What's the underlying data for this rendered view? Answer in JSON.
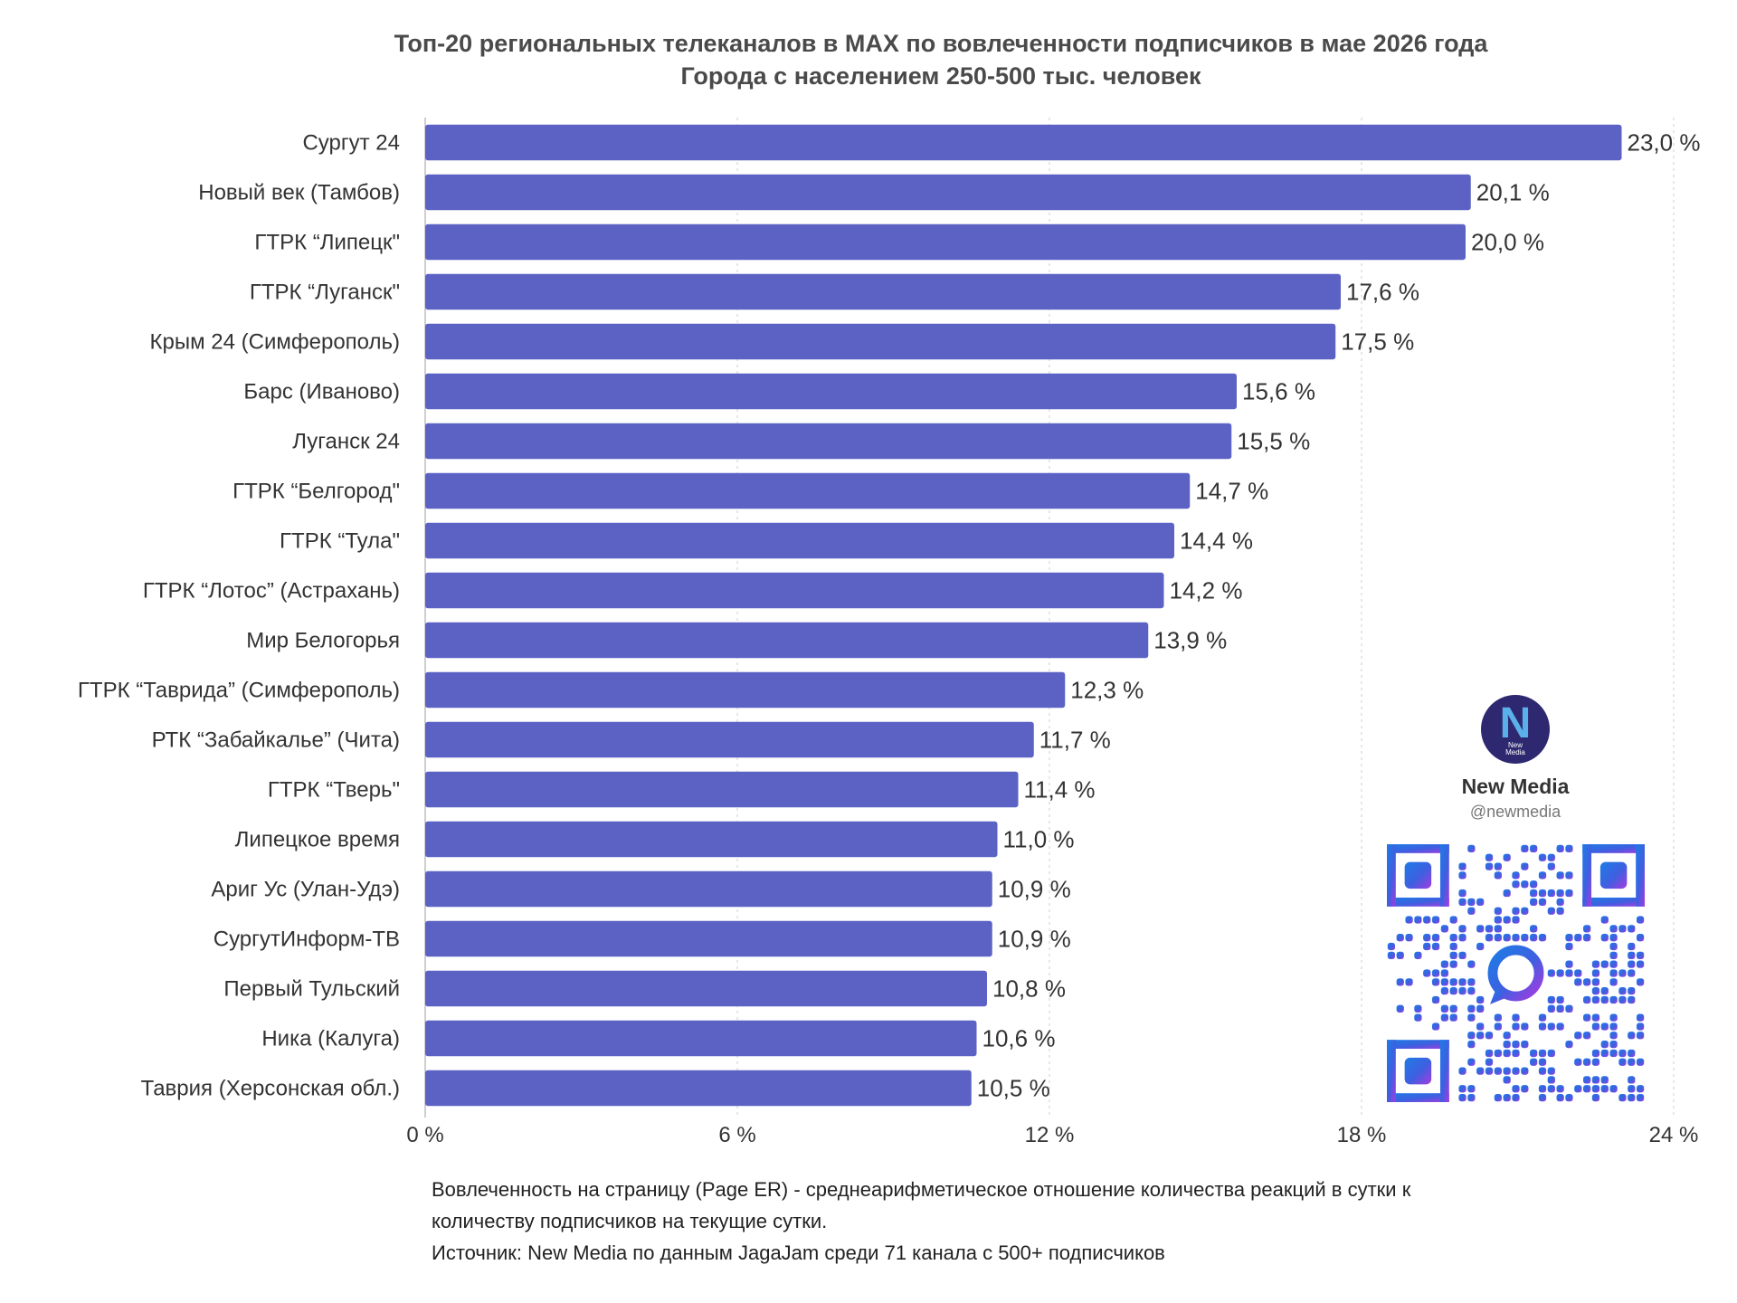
{
  "chart_data": {
    "type": "bar",
    "orientation": "horizontal",
    "title": "Топ-20 региональных телеканалов в MAX по вовлеченности подписчиков в мае 2026 года",
    "subtitle": "Города с населением 250-500 тыс. человек",
    "categories": [
      "Сургут 24",
      "Новый век (Тамбов)",
      "ГТРК “Липецк\"",
      "ГТРК “Луганск\"",
      "Крым 24 (Симферополь)",
      "Барс (Иваново)",
      "Луганск 24",
      "ГТРК “Белгород\"",
      "ГТРК “Тула\"",
      "ГТРК “Лотос” (Астрахань)",
      "Мир Белогорья",
      "ГТРК “Таврида” (Симферополь)",
      "РТК “Забайкалье” (Чита)",
      "ГТРК “Тверь\"",
      "Липецкое время",
      "Ариг Ус (Улан-Удэ)",
      "СургутИнформ-ТВ",
      "Первый Тульский",
      "Ника (Калуга)",
      "Таврия (Херсонская обл.)"
    ],
    "values": [
      23.0,
      20.1,
      20.0,
      17.6,
      17.5,
      15.6,
      15.5,
      14.7,
      14.4,
      14.2,
      13.9,
      12.3,
      11.7,
      11.4,
      11.0,
      10.9,
      10.9,
      10.8,
      10.6,
      10.5
    ],
    "value_labels": [
      "23,0 %",
      "20,1 %",
      "20,0 %",
      "17,6 %",
      "17,5 %",
      "15,6 %",
      "15,5 %",
      "14,7 %",
      "14,4 %",
      "14,2 %",
      "13,9 %",
      "12,3 %",
      "11,7 %",
      "11,4 %",
      "11,0 %",
      "10,9 %",
      "10,9 %",
      "10,8 %",
      "10,6 %",
      "10,5 %"
    ],
    "xlim": [
      0,
      24
    ],
    "xticks": [
      0,
      6,
      12,
      18,
      24
    ],
    "xtick_labels": [
      "0 %",
      "6 %",
      "12 %",
      "18 %",
      "24 %"
    ],
    "grid": "vertical",
    "bar_color": "#5b62c4"
  },
  "footnote": {
    "line1": "Вовлеченность на страницу (Page ER) - среднеарифметическое отношение количества реакций в сутки к",
    "line2": "количеству подписчиков на текущие сутки.",
    "line3": "Источник: New Media по данным JagaJam среди 71 канала с 500+ подписчиков"
  },
  "brand": {
    "logo_letter": "N",
    "logo_sub_1": "New",
    "logo_sub_2": "Media",
    "name": "New Media",
    "handle": "@newmedia",
    "qr_icon": "qr-code-icon"
  }
}
